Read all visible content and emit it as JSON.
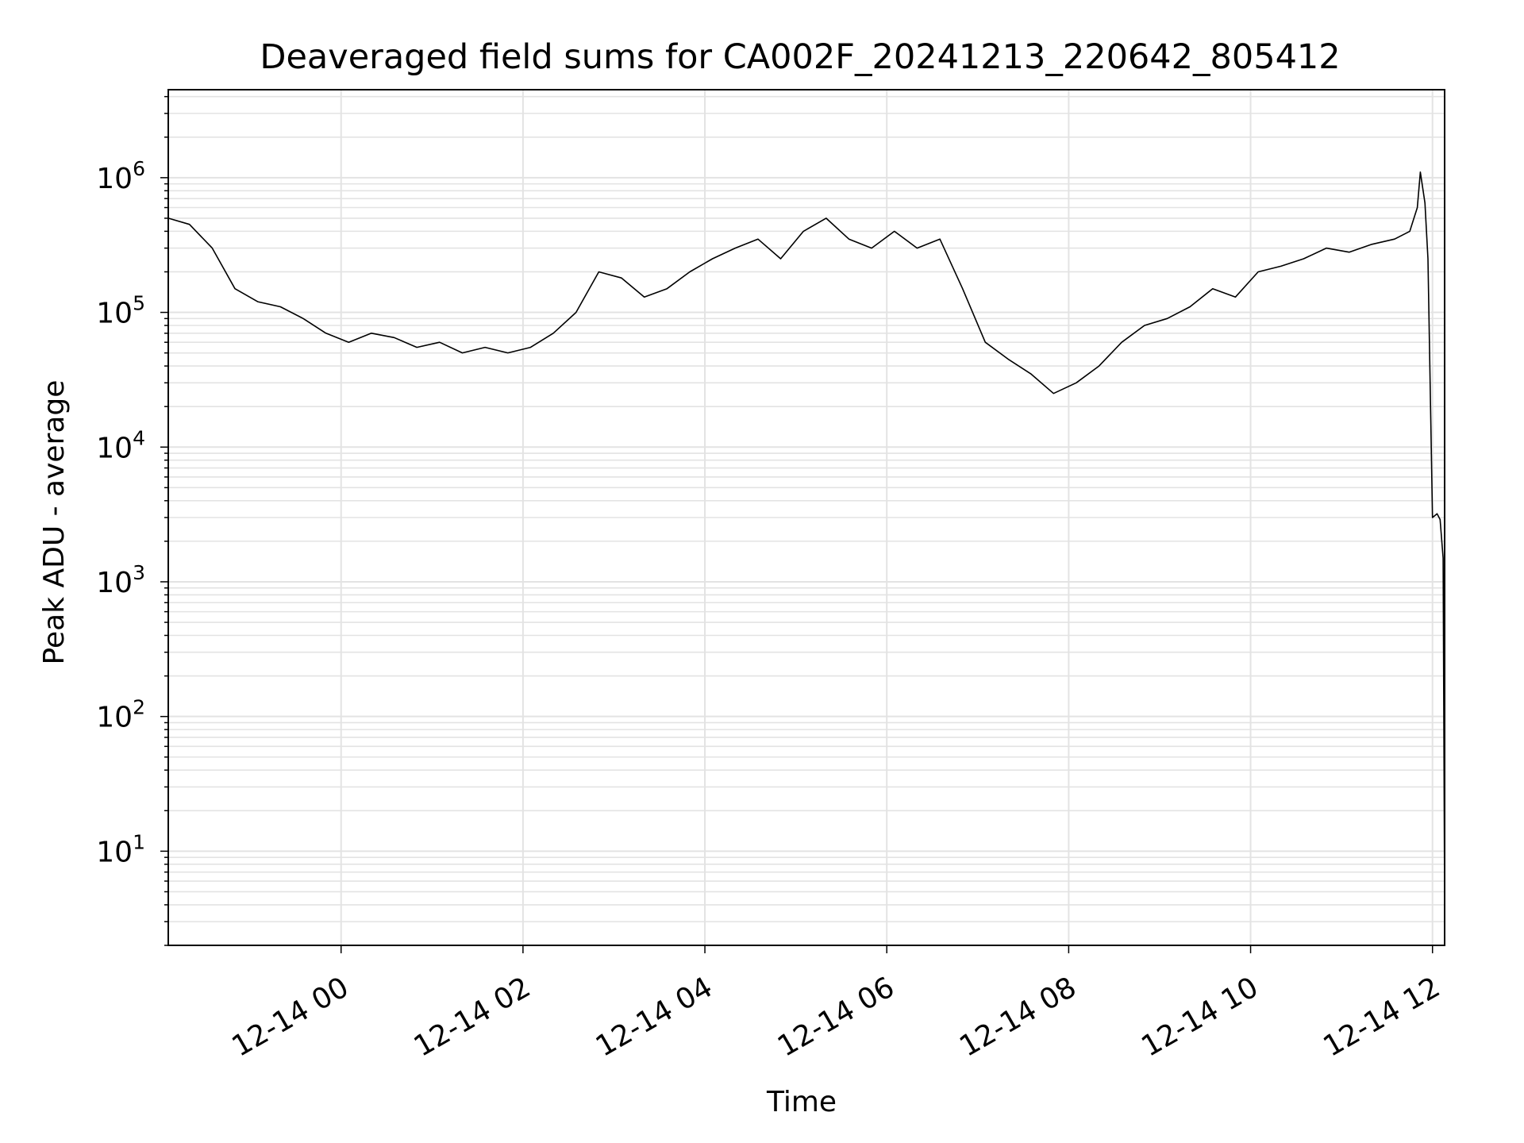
{
  "chart_data": {
    "type": "line",
    "title": "Deaveraged field sums for CA002F_20241213_220642_805412",
    "xlabel": "Time",
    "ylabel": "Peak ADU - average",
    "yscale": "log",
    "grid": true,
    "ylim": [
      2,
      4500000
    ],
    "xlim": [
      "2024-12-13 22:06",
      "2024-12-14 12:08"
    ],
    "x_ticks": [
      "12-14 00",
      "12-14 02",
      "12-14 04",
      "12-14 06",
      "12-14 08",
      "12-14 10",
      "12-14 12"
    ],
    "y_ticks": [
      {
        "base": "10",
        "exp": "1"
      },
      {
        "base": "10",
        "exp": "2"
      },
      {
        "base": "10",
        "exp": "3"
      },
      {
        "base": "10",
        "exp": "4"
      },
      {
        "base": "10",
        "exp": "5"
      },
      {
        "base": "10",
        "exp": "6"
      }
    ],
    "series": [
      {
        "color": "#000000",
        "x": [
          "2024-12-13 22:06",
          "2024-12-13 22:20",
          "2024-12-13 22:35",
          "2024-12-13 22:50",
          "2024-12-13 23:05",
          "2024-12-13 23:20",
          "2024-12-13 23:35",
          "2024-12-13 23:50",
          "2024-12-14 00:05",
          "2024-12-14 00:20",
          "2024-12-14 00:35",
          "2024-12-14 00:50",
          "2024-12-14 01:05",
          "2024-12-14 01:20",
          "2024-12-14 01:35",
          "2024-12-14 01:50",
          "2024-12-14 02:05",
          "2024-12-14 02:20",
          "2024-12-14 02:35",
          "2024-12-14 02:50",
          "2024-12-14 03:05",
          "2024-12-14 03:20",
          "2024-12-14 03:35",
          "2024-12-14 03:50",
          "2024-12-14 04:05",
          "2024-12-14 04:20",
          "2024-12-14 04:35",
          "2024-12-14 04:50",
          "2024-12-14 05:05",
          "2024-12-14 05:20",
          "2024-12-14 05:35",
          "2024-12-14 05:50",
          "2024-12-14 06:05",
          "2024-12-14 06:20",
          "2024-12-14 06:35",
          "2024-12-14 06:50",
          "2024-12-14 07:05",
          "2024-12-14 07:20",
          "2024-12-14 07:35",
          "2024-12-14 07:50",
          "2024-12-14 08:05",
          "2024-12-14 08:20",
          "2024-12-14 08:35",
          "2024-12-14 08:50",
          "2024-12-14 09:05",
          "2024-12-14 09:20",
          "2024-12-14 09:35",
          "2024-12-14 09:50",
          "2024-12-14 10:05",
          "2024-12-14 10:20",
          "2024-12-14 10:35",
          "2024-12-14 10:50",
          "2024-12-14 11:05",
          "2024-12-14 11:20",
          "2024-12-14 11:35",
          "2024-12-14 11:45",
          "2024-12-14 11:50",
          "2024-12-14 11:52",
          "2024-12-14 11:55",
          "2024-12-14 11:57",
          "2024-12-14 12:00",
          "2024-12-14 12:03",
          "2024-12-14 12:05",
          "2024-12-14 12:07",
          "2024-12-14 12:08"
        ],
        "y": [
          500000,
          450000,
          300000,
          150000,
          120000,
          110000,
          90000,
          70000,
          60000,
          70000,
          65000,
          55000,
          60000,
          50000,
          55000,
          50000,
          55000,
          70000,
          100000,
          200000,
          180000,
          130000,
          150000,
          200000,
          250000,
          300000,
          350000,
          250000,
          400000,
          500000,
          350000,
          300000,
          400000,
          300000,
          350000,
          150000,
          60000,
          45000,
          35000,
          25000,
          30000,
          40000,
          60000,
          80000,
          90000,
          110000,
          150000,
          130000,
          200000,
          220000,
          250000,
          300000,
          280000,
          320000,
          350000,
          400000,
          600000,
          1100000,
          650000,
          250000,
          3000,
          3200,
          2900,
          1500,
          4
        ]
      }
    ]
  }
}
